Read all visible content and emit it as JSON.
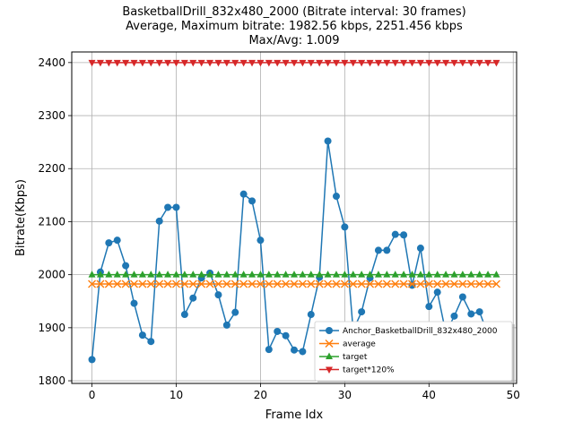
{
  "chart_data": {
    "type": "line",
    "title_lines": [
      "BasketballDrill_832x480_2000 (Bitrate interval: 30 frames)",
      "Average, Maximum bitrate: 1982.56 kbps, 2251.456 kbps",
      "Max/Avg: 1.009"
    ],
    "xlabel": "Frame Idx",
    "ylabel": "Bitrate(Kbps)",
    "xlim": [
      -2.4,
      50.4
    ],
    "ylim": [
      1795,
      2420
    ],
    "x_ticks": [
      0,
      10,
      20,
      30,
      40,
      50
    ],
    "y_ticks": [
      1800,
      1900,
      2000,
      2100,
      2200,
      2300,
      2400
    ],
    "grid": true,
    "legend_position": "lower-right",
    "series": [
      {
        "name": "Anchor_BasketballDrill_832x480_2000",
        "color": "#1f77b4",
        "marker": "circle",
        "x": [
          0,
          1,
          2,
          3,
          4,
          5,
          6,
          7,
          8,
          9,
          10,
          11,
          12,
          13,
          14,
          15,
          16,
          17,
          18,
          19,
          20,
          21,
          22,
          23,
          24,
          25,
          26,
          27,
          28,
          29,
          30,
          31,
          32,
          33,
          34,
          35,
          36,
          37,
          38,
          39,
          40,
          41,
          42,
          43,
          44,
          45,
          46,
          47,
          48
        ],
        "values": [
          1840,
          2005,
          2060,
          2065,
          2017,
          1946,
          1886,
          1874,
          2101,
          2127,
          2127,
          1925,
          1956,
          1994,
          2003,
          1962,
          1905,
          1929,
          2152,
          2139,
          2065,
          1859,
          1893,
          1885,
          1858,
          1855,
          1925,
          1995,
          2252,
          2148,
          2090,
          1895,
          1930,
          1994,
          2046,
          2046,
          2076,
          2075,
          1980,
          2050,
          1940,
          1967,
          1890,
          1922,
          1958,
          1926,
          1930,
          1887,
          1897
        ]
      },
      {
        "name": "average",
        "color": "#ff7f0e",
        "marker": "x",
        "x": [
          0,
          1,
          2,
          3,
          4,
          5,
          6,
          7,
          8,
          9,
          10,
          11,
          12,
          13,
          14,
          15,
          16,
          17,
          18,
          19,
          20,
          21,
          22,
          23,
          24,
          25,
          26,
          27,
          28,
          29,
          30,
          31,
          32,
          33,
          34,
          35,
          36,
          37,
          38,
          39,
          40,
          41,
          42,
          43,
          44,
          45,
          46,
          47,
          48
        ],
        "values": [
          1982.56,
          1982.56,
          1982.56,
          1982.56,
          1982.56,
          1982.56,
          1982.56,
          1982.56,
          1982.56,
          1982.56,
          1982.56,
          1982.56,
          1982.56,
          1982.56,
          1982.56,
          1982.56,
          1982.56,
          1982.56,
          1982.56,
          1982.56,
          1982.56,
          1982.56,
          1982.56,
          1982.56,
          1982.56,
          1982.56,
          1982.56,
          1982.56,
          1982.56,
          1982.56,
          1982.56,
          1982.56,
          1982.56,
          1982.56,
          1982.56,
          1982.56,
          1982.56,
          1982.56,
          1982.56,
          1982.56,
          1982.56,
          1982.56,
          1982.56,
          1982.56,
          1982.56,
          1982.56,
          1982.56,
          1982.56,
          1982.56
        ]
      },
      {
        "name": "target",
        "color": "#2ca02c",
        "marker": "triangle-up",
        "x": [
          0,
          1,
          2,
          3,
          4,
          5,
          6,
          7,
          8,
          9,
          10,
          11,
          12,
          13,
          14,
          15,
          16,
          17,
          18,
          19,
          20,
          21,
          22,
          23,
          24,
          25,
          26,
          27,
          28,
          29,
          30,
          31,
          32,
          33,
          34,
          35,
          36,
          37,
          38,
          39,
          40,
          41,
          42,
          43,
          44,
          45,
          46,
          47,
          48
        ],
        "values": [
          2000,
          2000,
          2000,
          2000,
          2000,
          2000,
          2000,
          2000,
          2000,
          2000,
          2000,
          2000,
          2000,
          2000,
          2000,
          2000,
          2000,
          2000,
          2000,
          2000,
          2000,
          2000,
          2000,
          2000,
          2000,
          2000,
          2000,
          2000,
          2000,
          2000,
          2000,
          2000,
          2000,
          2000,
          2000,
          2000,
          2000,
          2000,
          2000,
          2000,
          2000,
          2000,
          2000,
          2000,
          2000,
          2000,
          2000,
          2000,
          2000
        ]
      },
      {
        "name": "target*120%",
        "color": "#d62728",
        "marker": "triangle-down",
        "x": [
          0,
          1,
          2,
          3,
          4,
          5,
          6,
          7,
          8,
          9,
          10,
          11,
          12,
          13,
          14,
          15,
          16,
          17,
          18,
          19,
          20,
          21,
          22,
          23,
          24,
          25,
          26,
          27,
          28,
          29,
          30,
          31,
          32,
          33,
          34,
          35,
          36,
          37,
          38,
          39,
          40,
          41,
          42,
          43,
          44,
          45,
          46,
          47,
          48
        ],
        "values": [
          2400,
          2400,
          2400,
          2400,
          2400,
          2400,
          2400,
          2400,
          2400,
          2400,
          2400,
          2400,
          2400,
          2400,
          2400,
          2400,
          2400,
          2400,
          2400,
          2400,
          2400,
          2400,
          2400,
          2400,
          2400,
          2400,
          2400,
          2400,
          2400,
          2400,
          2400,
          2400,
          2400,
          2400,
          2400,
          2400,
          2400,
          2400,
          2400,
          2400,
          2400,
          2400,
          2400,
          2400,
          2400,
          2400,
          2400,
          2400,
          2400
        ]
      }
    ]
  }
}
